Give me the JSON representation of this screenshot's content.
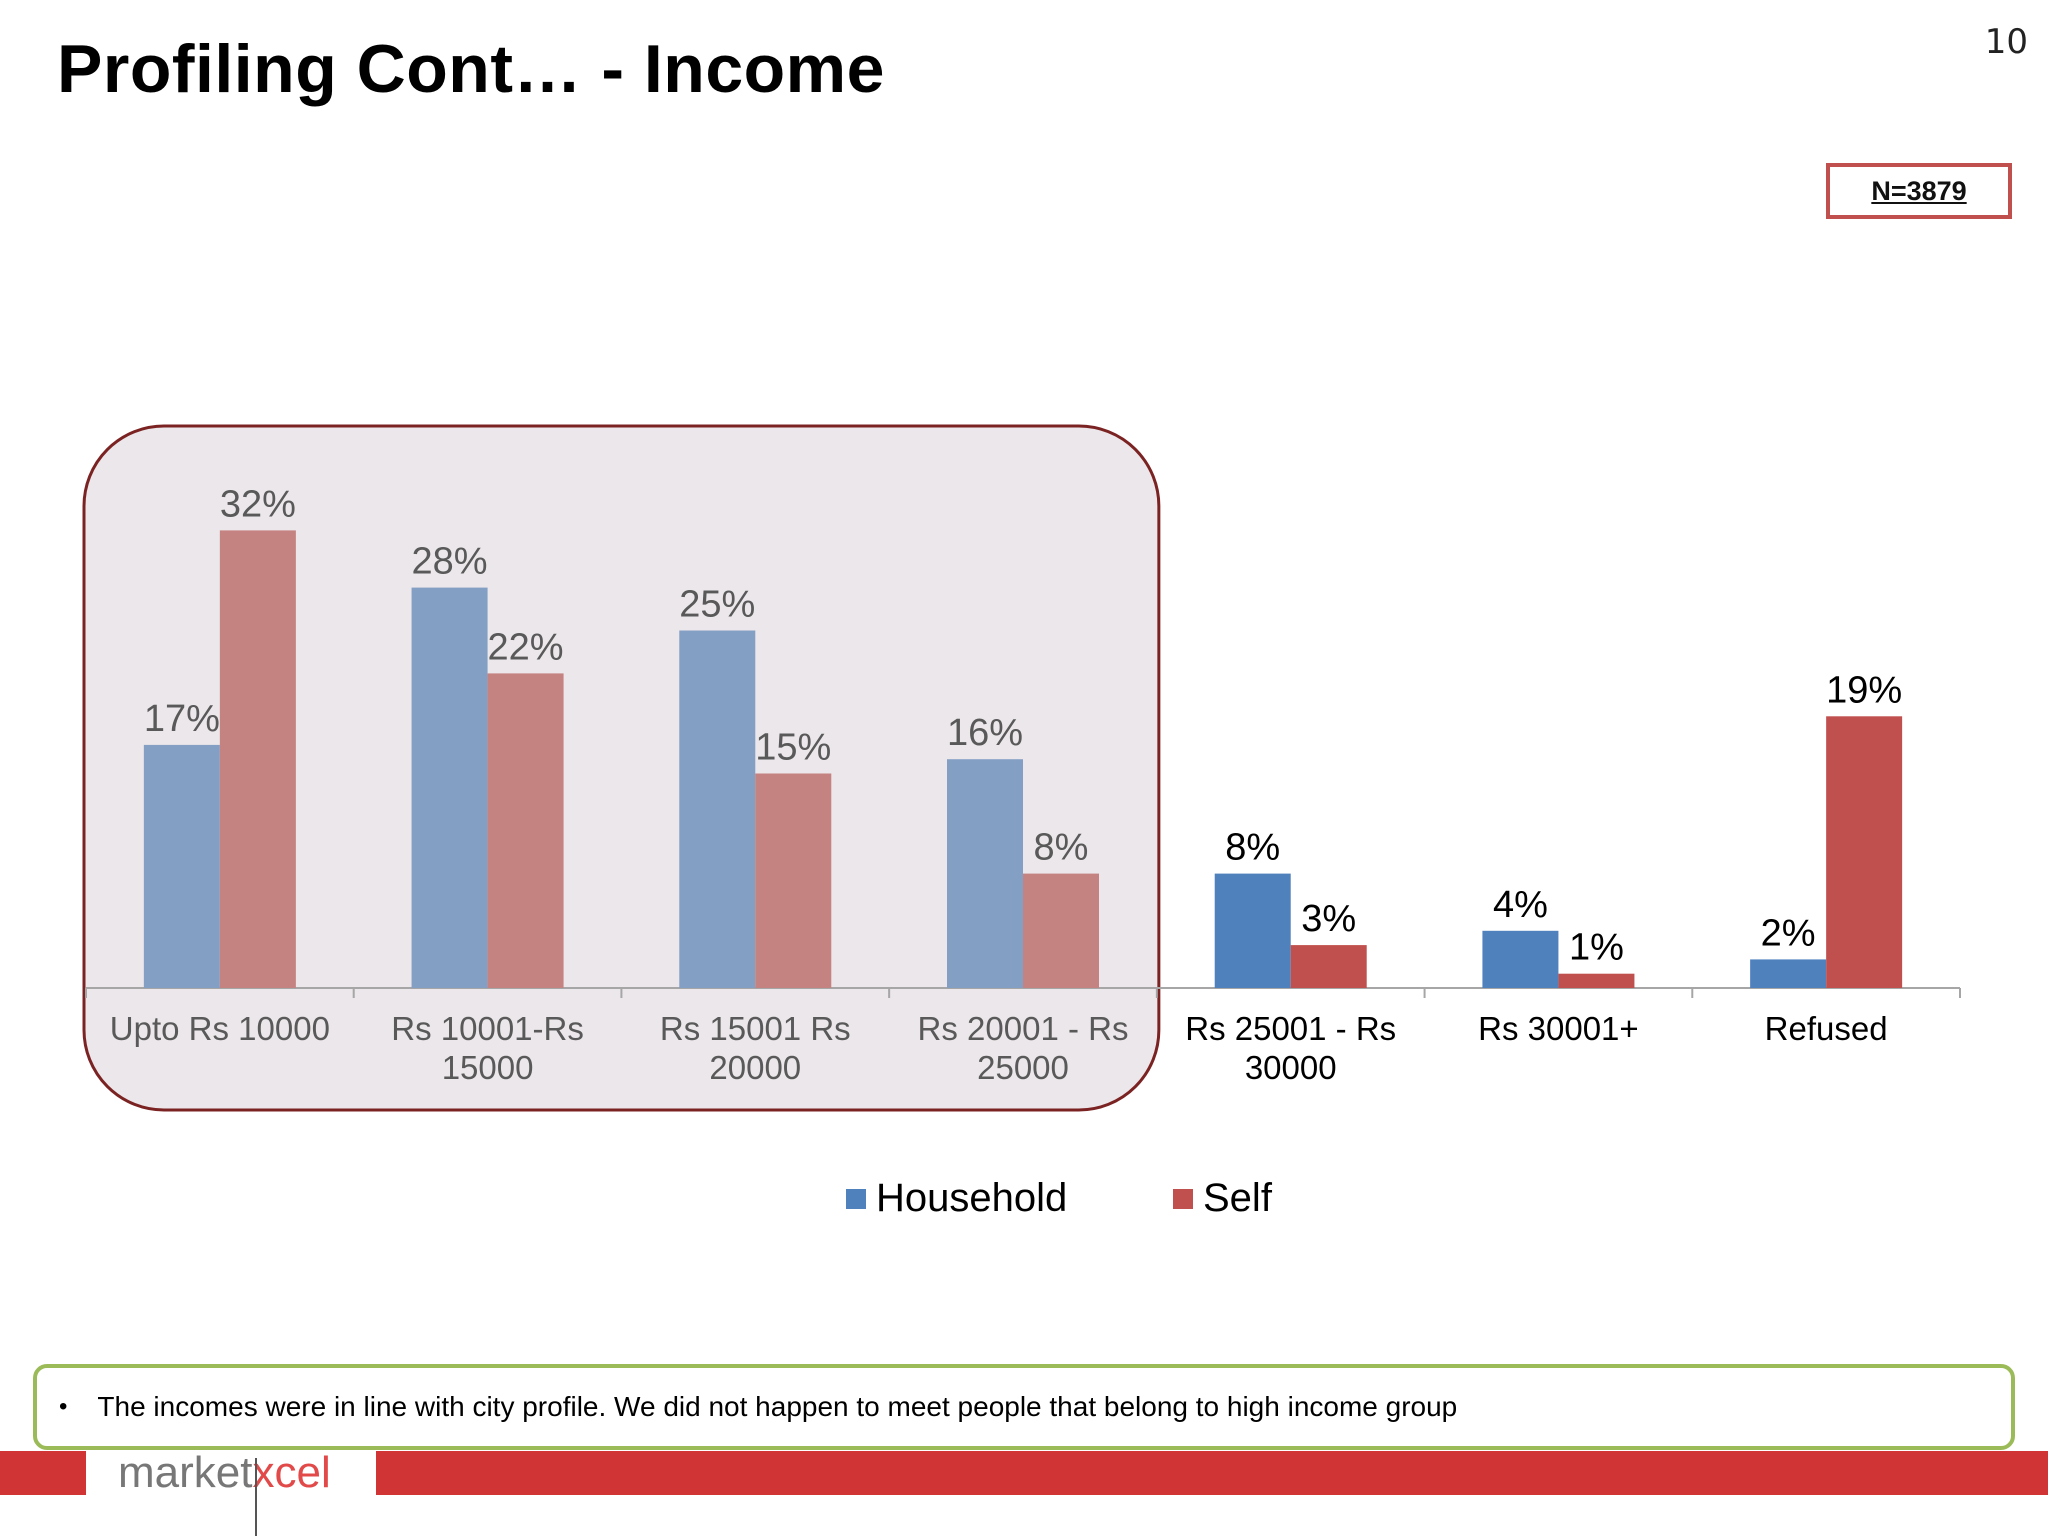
{
  "slide": {
    "title": "Profiling Cont… - Income",
    "page_number": "10",
    "sample_size": "N=3879",
    "bullet": "•",
    "note": "The incomes were in line with city profile. We did not  happen to meet people that belong to high income group"
  },
  "logo": {
    "text_main": "market",
    "text_accent": "xcel"
  },
  "colors": {
    "household": "#4f81bd",
    "self": "#c0504d",
    "household_highlighted": "#849fc4",
    "self_highlighted": "#c48280",
    "highlight_border": "#7b2323",
    "callout_border": "#9bbb59",
    "footer_red": "#d03434"
  },
  "chart_data": {
    "type": "bar",
    "title": "",
    "xlabel": "",
    "ylabel": "",
    "ylim": [
      0,
      40
    ],
    "grid": false,
    "legend_position": "bottom",
    "categories": [
      [
        "Upto Rs 10000"
      ],
      [
        "Rs 10001-Rs",
        "15000"
      ],
      [
        "Rs 15001  Rs",
        "20000"
      ],
      [
        "Rs 20001 - Rs",
        "25000"
      ],
      [
        "Rs 25001 - Rs",
        "30000"
      ],
      [
        "Rs 30001+"
      ],
      [
        "Refused"
      ]
    ],
    "series": [
      {
        "name": "Household",
        "values": [
          17,
          28,
          25,
          16,
          8,
          4,
          2
        ],
        "labels": [
          "17%",
          "28%",
          "25%",
          "16%",
          "8%",
          "4%",
          "2%"
        ]
      },
      {
        "name": "Self",
        "values": [
          32,
          22,
          15,
          8,
          3,
          1,
          19
        ],
        "labels": [
          "32%",
          "22%",
          "15%",
          "8%",
          "3%",
          "1%",
          "19%"
        ]
      }
    ],
    "highlighted_categories": [
      0,
      1,
      2,
      3
    ]
  }
}
